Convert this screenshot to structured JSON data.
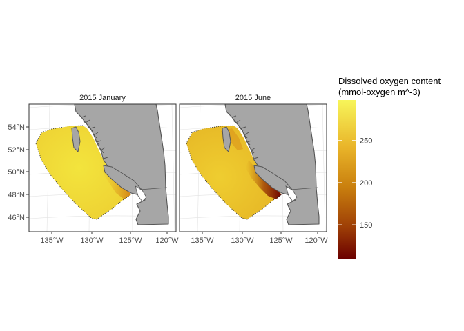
{
  "panels": [
    {
      "title": "2015 January"
    },
    {
      "title": "2015 June"
    }
  ],
  "axes": {
    "lat_ticks": [
      "54°N",
      "52°N",
      "50°N",
      "48°N",
      "46°N"
    ],
    "lon_ticks": [
      "135°W",
      "130°W",
      "125°W",
      "120°W"
    ]
  },
  "legend": {
    "title_line1": "Dissolved oxygen content",
    "title_line2": "(mmol-oxygen m^-3)",
    "ticks": [
      "250",
      "200",
      "150"
    ],
    "range": [
      110,
      298
    ],
    "colors": [
      "#f7f55a",
      "#e9b429",
      "#c97f0e",
      "#9e3f06",
      "#6b0000"
    ]
  },
  "colors": {
    "land": "#a6a6a6",
    "coast": "#555555",
    "ocean_jan": "#f1d835",
    "ocean_jun": "#ecc22d",
    "low_oxygen": "#7a0d02"
  }
}
